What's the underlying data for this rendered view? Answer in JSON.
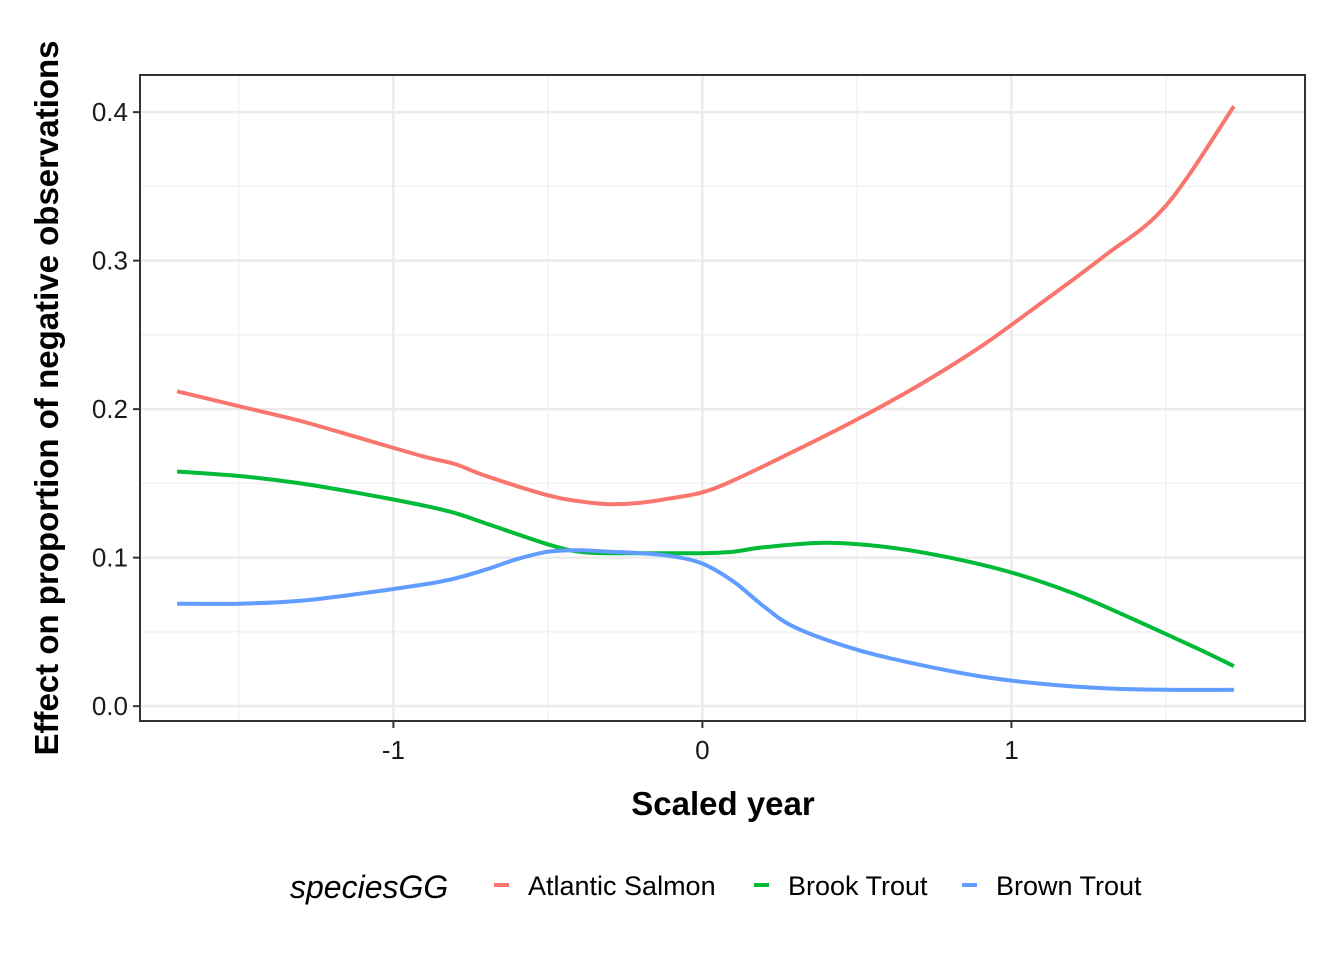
{
  "chart_data": {
    "type": "line",
    "title": "",
    "xlabel": "Scaled year",
    "ylabel": "Effect on proportion of negative observations",
    "xlim": [
      -1.82,
      1.95
    ],
    "ylim": [
      -0.01,
      0.425
    ],
    "x_ticks": [
      -1,
      0,
      1
    ],
    "x_tick_labels": [
      "-1",
      "0",
      "1"
    ],
    "y_ticks": [
      0.0,
      0.1,
      0.2,
      0.3,
      0.4
    ],
    "y_tick_labels": [
      "0.0",
      "0.1",
      "0.2",
      "0.3",
      "0.4"
    ],
    "grid": true,
    "legend": {
      "title": "speciesGG",
      "position": "bottom"
    },
    "series": [
      {
        "name": "Atlantic Salmon",
        "color": "#F8766D",
        "x": [
          -1.7,
          -1.5,
          -1.3,
          -1.1,
          -0.9,
          -0.8,
          -0.7,
          -0.5,
          -0.4,
          -0.3,
          -0.2,
          -0.1,
          0.0,
          0.1,
          0.3,
          0.5,
          0.7,
          0.9,
          1.1,
          1.3,
          1.5,
          1.72
        ],
        "y": [
          0.212,
          0.202,
          0.192,
          0.18,
          0.168,
          0.163,
          0.155,
          0.142,
          0.138,
          0.136,
          0.137,
          0.14,
          0.144,
          0.152,
          0.172,
          0.193,
          0.216,
          0.242,
          0.272,
          0.303,
          0.337,
          0.404
        ]
      },
      {
        "name": "Brook Trout",
        "color": "#00BA38",
        "x": [
          -1.7,
          -1.5,
          -1.3,
          -1.1,
          -0.9,
          -0.8,
          -0.7,
          -0.5,
          -0.4,
          -0.3,
          -0.1,
          0.0,
          0.1,
          0.2,
          0.4,
          0.6,
          0.8,
          1.0,
          1.2,
          1.4,
          1.6,
          1.72
        ],
        "y": [
          0.158,
          0.155,
          0.15,
          0.143,
          0.135,
          0.13,
          0.123,
          0.109,
          0.104,
          0.103,
          0.103,
          0.103,
          0.104,
          0.107,
          0.11,
          0.107,
          0.1,
          0.09,
          0.076,
          0.058,
          0.039,
          0.027
        ]
      },
      {
        "name": "Brown Trout",
        "color": "#619CFF",
        "x": [
          -1.7,
          -1.5,
          -1.3,
          -1.1,
          -0.9,
          -0.8,
          -0.7,
          -0.6,
          -0.5,
          -0.4,
          -0.3,
          -0.2,
          -0.1,
          0.0,
          0.1,
          0.2,
          0.3,
          0.5,
          0.7,
          0.9,
          1.1,
          1.3,
          1.5,
          1.72
        ],
        "y": [
          0.069,
          0.069,
          0.071,
          0.076,
          0.082,
          0.086,
          0.092,
          0.099,
          0.104,
          0.105,
          0.104,
          0.103,
          0.101,
          0.096,
          0.084,
          0.067,
          0.053,
          0.038,
          0.028,
          0.02,
          0.015,
          0.012,
          0.011,
          0.011
        ]
      }
    ]
  }
}
